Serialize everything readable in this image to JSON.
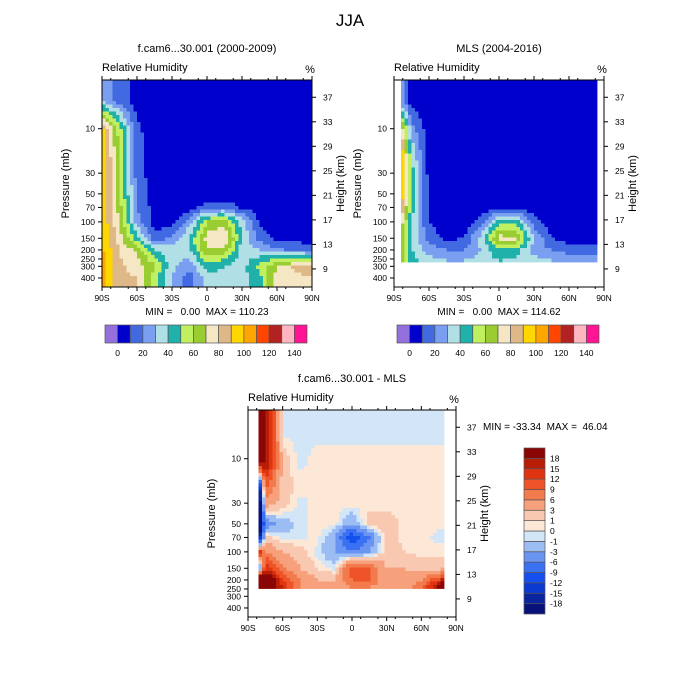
{
  "figure_title": "JJA",
  "chart_data": [
    {
      "type": "heatmap",
      "title": "f.cam6...30.001 (2000-2009)",
      "left_label": "Relative Humidity",
      "right_label": "%",
      "xlabel": "",
      "ylabel": "Pressure (mb)",
      "y2label": "Height (km)",
      "stats": "MIN =   0.00  MAX = 110.23",
      "x_ticks": [
        "90S",
        "60S",
        "30S",
        "0",
        "30N",
        "60N",
        "90N"
      ],
      "y_ticks": [
        10,
        30,
        50,
        70,
        100,
        150,
        200,
        250,
        300,
        400
      ],
      "y2_ticks": [
        37,
        33,
        29,
        25,
        21,
        17,
        13,
        9
      ],
      "xlim": [
        -90,
        90
      ],
      "ylim_mb": [
        500,
        3
      ],
      "y_scale": "log",
      "lat": [
        -90,
        -75,
        -60,
        -45,
        -30,
        -15,
        0,
        15,
        30,
        45,
        60,
        75,
        90
      ],
      "pressure": [
        3,
        5,
        10,
        20,
        30,
        50,
        70,
        100,
        150,
        200,
        300,
        400,
        500
      ],
      "values": [
        [
          30,
          15,
          5,
          3,
          2,
          2,
          2,
          2,
          2,
          2,
          2,
          2,
          2
        ],
        [
          30,
          15,
          5,
          3,
          2,
          2,
          2,
          2,
          2,
          2,
          2,
          2,
          2
        ],
        [
          95,
          55,
          12,
          4,
          2,
          2,
          2,
          2,
          2,
          2,
          2,
          2,
          2
        ],
        [
          100,
          60,
          15,
          4,
          2,
          2,
          2,
          2,
          2,
          2,
          2,
          2,
          2
        ],
        [
          100,
          60,
          15,
          4,
          2,
          2,
          2,
          2,
          2,
          2,
          2,
          2,
          2
        ],
        [
          100,
          62,
          18,
          5,
          2,
          2,
          2,
          2,
          2,
          2,
          2,
          2,
          2
        ],
        [
          98,
          65,
          20,
          6,
          3,
          5,
          15,
          18,
          8,
          4,
          3,
          3,
          3
        ],
        [
          98,
          70,
          25,
          6,
          5,
          25,
          60,
          65,
          35,
          8,
          5,
          4,
          4
        ],
        [
          100,
          75,
          45,
          12,
          22,
          42,
          75,
          82,
          40,
          15,
          8,
          6,
          5
        ],
        [
          102,
          80,
          68,
          40,
          35,
          38,
          70,
          65,
          35,
          30,
          22,
          18,
          15
        ],
        [
          106,
          82,
          75,
          62,
          32,
          22,
          45,
          40,
          35,
          55,
          70,
          82,
          85
        ],
        [
          103,
          82,
          80,
          55,
          30,
          15,
          35,
          38,
          36,
          45,
          75,
          78,
          80
        ],
        [
          103,
          82,
          80,
          55,
          30,
          15,
          35,
          38,
          36,
          45,
          75,
          78,
          80
        ]
      ],
      "levels": [
        0,
        10,
        20,
        30,
        40,
        50,
        60,
        70,
        80,
        90,
        100,
        110,
        120,
        130,
        140
      ],
      "colorbar_labels": [
        "0",
        "20",
        "40",
        "60",
        "80",
        "100",
        "120",
        "140"
      ],
      "colors": [
        "#9370db",
        "#0000cd",
        "#4169e1",
        "#7b9ff0",
        "#b0e0e6",
        "#20b2aa",
        "#c0f060",
        "#9acd32",
        "#f5e6c4",
        "#deb887",
        "#ffd700",
        "#ffa500",
        "#ff4500",
        "#b22222",
        "#ffb6c1",
        "#ff1493"
      ]
    },
    {
      "type": "heatmap",
      "title": "MLS (2004-2016)",
      "left_label": "Relative Humidity",
      "right_label": "%",
      "xlabel": "",
      "ylabel": "Pressure (mb)",
      "y2label": "Height (km)",
      "stats": "MIN =   0.00  MAX = 114.62",
      "x_ticks": [
        "90S",
        "60S",
        "30S",
        "0",
        "30N",
        "60N",
        "90N"
      ],
      "y_ticks": [
        10,
        30,
        50,
        70,
        100,
        150,
        200,
        250,
        300,
        400
      ],
      "y2_ticks": [
        37,
        33,
        29,
        25,
        21,
        17,
        13,
        9
      ],
      "xlim": [
        -90,
        90
      ],
      "ylim_mb": [
        500,
        3
      ],
      "y_scale": "log",
      "lat": [
        -82.5,
        -75,
        -60,
        -45,
        -30,
        -15,
        0,
        15,
        30,
        45,
        60,
        75,
        82.5
      ],
      "pressure": [
        3,
        5,
        10,
        20,
        30,
        50,
        70,
        100,
        150,
        200,
        261
      ],
      "values": [
        [
          20,
          5,
          2,
          2,
          2,
          2,
          2,
          2,
          2,
          2,
          2,
          2,
          2
        ],
        [
          20,
          5,
          2,
          2,
          2,
          2,
          2,
          2,
          2,
          2,
          2,
          2,
          2
        ],
        [
          70,
          25,
          3,
          2,
          2,
          2,
          2,
          2,
          2,
          2,
          2,
          2,
          2
        ],
        [
          95,
          40,
          5,
          2,
          2,
          2,
          2,
          2,
          2,
          2,
          2,
          2,
          2
        ],
        [
          100,
          45,
          6,
          2,
          2,
          2,
          2,
          2,
          2,
          2,
          2,
          2,
          2
        ],
        [
          95,
          45,
          8,
          3,
          2,
          2,
          2,
          2,
          2,
          2,
          2,
          2,
          2
        ],
        [
          85,
          45,
          8,
          3,
          2,
          2,
          8,
          8,
          3,
          2,
          2,
          2,
          2
        ],
        [
          70,
          40,
          10,
          4,
          3,
          15,
          45,
          45,
          15,
          4,
          3,
          3,
          3
        ],
        [
          65,
          40,
          15,
          8,
          10,
          35,
          75,
          72,
          30,
          10,
          6,
          5,
          5
        ],
        [
          60,
          40,
          25,
          20,
          20,
          30,
          50,
          45,
          25,
          20,
          15,
          15,
          15
        ],
        [
          60,
          45,
          35,
          30,
          30,
          35,
          40,
          38,
          35,
          30,
          30,
          30,
          30
        ]
      ],
      "levels": [
        0,
        10,
        20,
        30,
        40,
        50,
        60,
        70,
        80,
        90,
        100,
        110,
        120,
        130,
        140
      ],
      "colorbar_labels": [
        "0",
        "20",
        "40",
        "60",
        "80",
        "100",
        "120",
        "140"
      ],
      "colors": [
        "#9370db",
        "#0000cd",
        "#4169e1",
        "#7b9ff0",
        "#b0e0e6",
        "#20b2aa",
        "#c0f060",
        "#9acd32",
        "#f5e6c4",
        "#deb887",
        "#ffd700",
        "#ffa500",
        "#ff4500",
        "#b22222",
        "#ffb6c1",
        "#ff1493"
      ]
    },
    {
      "type": "heatmap",
      "title": "f.cam6...30.001 - MLS",
      "left_label": "Relative Humidity",
      "right_label": "%",
      "xlabel": "",
      "ylabel": "Pressure (mb)",
      "y2label": "Height (km)",
      "stats": "MIN = -33.34  MAX =  46.04",
      "x_ticks": [
        "90S",
        "60S",
        "30S",
        "0",
        "30N",
        "60N",
        "90N"
      ],
      "y_ticks": [
        10,
        30,
        50,
        70,
        100,
        150,
        200,
        250,
        300,
        400
      ],
      "y2_ticks": [
        37,
        33,
        29,
        25,
        21,
        17,
        13,
        9
      ],
      "xlim": [
        -90,
        90
      ],
      "ylim_mb": [
        500,
        3
      ],
      "y_scale": "log",
      "lat": [
        -80.5,
        -75,
        -60,
        -45,
        -30,
        -15,
        0,
        15,
        30,
        45,
        60,
        75,
        80.5
      ],
      "pressure": [
        3,
        5,
        10,
        20,
        30,
        50,
        70,
        100,
        150,
        200,
        245
      ],
      "values": [
        [
          20,
          20,
          -0.5,
          -0.5,
          -0.5,
          -0.5,
          -0.5,
          -0.5,
          -0.5,
          -0.5,
          -0.5,
          -0.5,
          -0.5
        ],
        [
          20,
          20,
          -0.5,
          -0.5,
          -0.5,
          -0.5,
          -0.5,
          -0.5,
          -0.5,
          -0.5,
          -0.5,
          -0.5,
          -0.5
        ],
        [
          25,
          20,
          2,
          -0.5,
          0.5,
          0.5,
          0.5,
          0.5,
          0.5,
          0.5,
          0.5,
          0.5,
          0.5
        ],
        [
          -20,
          10,
          2,
          0.5,
          0.5,
          0.5,
          0.5,
          0.5,
          0.5,
          0.5,
          0.5,
          0.5,
          0.5
        ],
        [
          -25,
          5,
          2,
          -0.5,
          0.5,
          0.5,
          0.5,
          0.5,
          0.5,
          0.5,
          0.5,
          0.5,
          0.5
        ],
        [
          -25,
          -5,
          -2,
          -0.5,
          0.5,
          0.5,
          -3,
          2,
          2,
          0.5,
          0.5,
          0.5,
          0.5
        ],
        [
          -20,
          2,
          -0.5,
          -0.5,
          0.5,
          -3,
          -12,
          -6,
          2,
          0.5,
          0.5,
          -0.5,
          -0.5
        ],
        [
          15,
          6,
          3,
          2,
          -0.5,
          -3,
          -6,
          -3,
          2,
          1,
          0.5,
          0.5,
          0.5
        ],
        [
          -10,
          15,
          6,
          3,
          1,
          -0.5,
          12,
          9,
          3,
          3,
          2,
          2,
          2
        ],
        [
          30,
          25,
          12,
          6,
          3,
          3,
          9,
          9,
          3,
          3,
          6,
          12,
          20
        ],
        [
          30,
          25,
          15,
          6,
          3,
          3,
          6,
          6,
          3,
          3,
          9,
          20,
          30
        ]
      ],
      "levels": [
        -18,
        -15,
        -12,
        -9,
        -6,
        -3,
        -1,
        0,
        1,
        3,
        6,
        9,
        12,
        15,
        18
      ],
      "colorbar_labels": [
        "-18",
        "-15",
        "-12",
        "-9",
        "-6",
        "-3",
        "-1",
        "0",
        "1",
        "3",
        "6",
        "9",
        "12",
        "15",
        "18"
      ],
      "colors": [
        "#08127a",
        "#0a24a0",
        "#0a3ad0",
        "#1450f0",
        "#3a70f2",
        "#6a94f2",
        "#9cbcf4",
        "#d2e6f8",
        "#fde8d8",
        "#f9c8b0",
        "#f6a07c",
        "#f27a4c",
        "#ee5428",
        "#e03410",
        "#b81e06",
        "#8a0606"
      ]
    }
  ]
}
